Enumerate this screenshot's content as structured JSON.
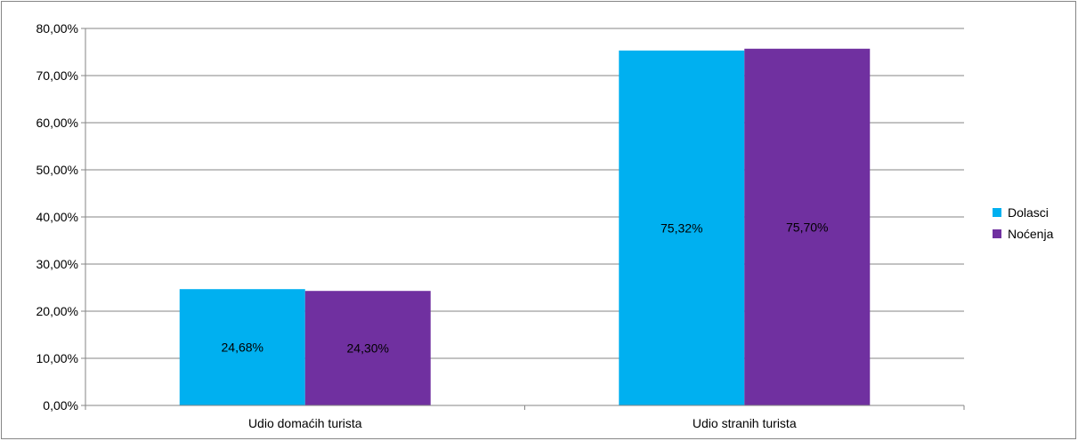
{
  "chart_data": {
    "type": "bar",
    "title": "",
    "xlabel": "",
    "ylabel": "",
    "categories": [
      "Udio domaćih turista",
      "Udio stranih turista"
    ],
    "series": [
      {
        "name": "Dolasci",
        "color": "#00B0F0",
        "values": [
          24.68,
          75.32
        ],
        "labels": [
          "24,68%",
          "75,32%"
        ]
      },
      {
        "name": "Noćenja",
        "color": "#7030A0",
        "values": [
          24.3,
          75.7
        ],
        "labels": [
          "24,30%",
          "75,70%"
        ]
      }
    ],
    "ylim": [
      0,
      80
    ],
    "yticks": [
      0,
      10,
      20,
      30,
      40,
      50,
      60,
      70,
      80
    ],
    "ytick_labels": [
      "0,00%",
      "10,00%",
      "20,00%",
      "30,00%",
      "40,00%",
      "50,00%",
      "60,00%",
      "70,00%",
      "80,00%"
    ],
    "grid": true,
    "legend_position": "right"
  }
}
